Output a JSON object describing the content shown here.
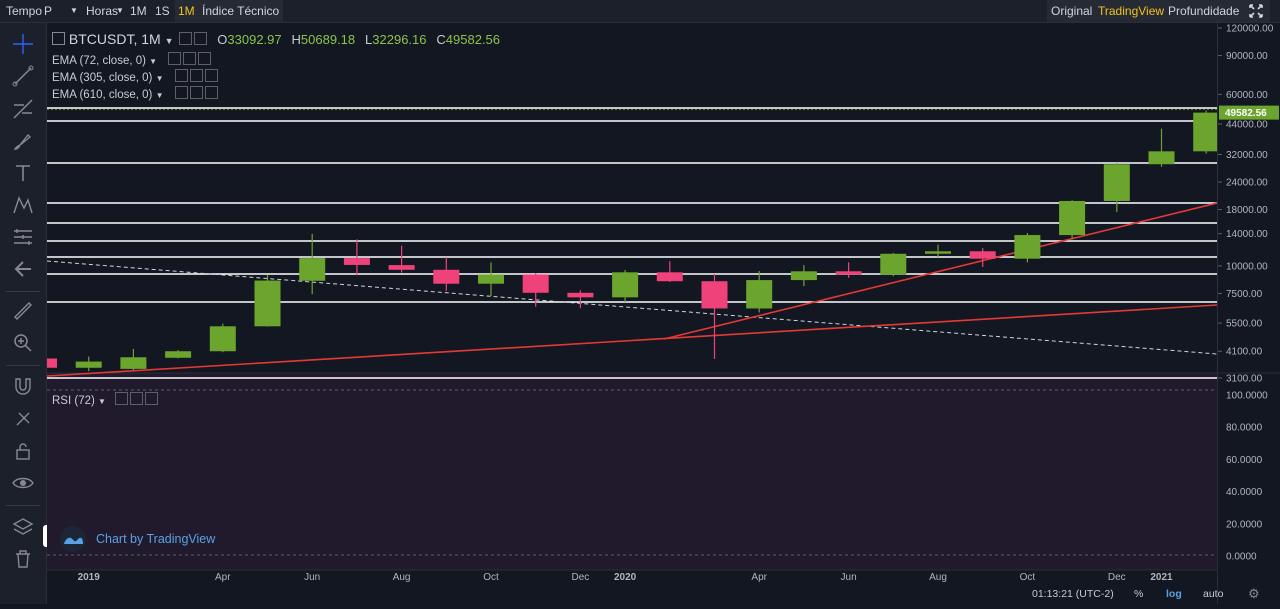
{
  "topbar": {
    "tempo_label": "Tempo",
    "period_select": "P",
    "hours_select": "Horas",
    "intervals": [
      "1M",
      "1S",
      "1M"
    ],
    "indicators_button": "Índice Técnico",
    "views": [
      "Original",
      "TradingView",
      "Profundidade"
    ],
    "active_view": "TradingView"
  },
  "legend": {
    "symbol": "BTCUSDT, 1M",
    "open_label": "O",
    "open": "33092.97",
    "high_label": "H",
    "high": "50689.18",
    "low_label": "L",
    "low": "32296.16",
    "close_label": "C",
    "close": "49582.56",
    "ema1": "EMA (72, close, 0)",
    "ema2": "EMA (305, close, 0)",
    "ema3": "EMA (610, close, 0)",
    "rsi": "RSI (72)"
  },
  "price_axis": [
    "120000.00",
    "90000.00",
    "60000.00",
    "44000.00",
    "32000.00",
    "24000.00",
    "18000.00",
    "14000.00",
    "10000.00",
    "7500.00",
    "5500.00",
    "4100.00",
    "3100.00"
  ],
  "last_price": "49582.56",
  "rsi_axis": [
    "100.0000",
    "80.0000",
    "60.0000",
    "40.0000",
    "20.0000",
    "0.0000"
  ],
  "time_axis": [
    "2019",
    "Apr",
    "Jun",
    "Aug",
    "Oct",
    "Dec",
    "2020",
    "Apr",
    "Jun",
    "Aug",
    "Oct",
    "Dec",
    "2021"
  ],
  "bottom_bar": {
    "clock": "01:13:21 (UTC-2)",
    "percent": "%",
    "log": "log",
    "auto": "auto"
  },
  "credit": "Chart by TradingView",
  "colors": {
    "up": "#6ba52e",
    "down": "#f0427a",
    "trend": "#e53935",
    "level": "#ffffff",
    "accent": "#f0c419"
  },
  "chart_data": {
    "type": "candlestick",
    "symbol": "BTCUSDT",
    "interval": "1M",
    "scale": "log",
    "candles": [
      {
        "t": "2018-12",
        "o": 3800,
        "h": 4200,
        "l": 3150,
        "c": 3450
      },
      {
        "t": "2019-01",
        "o": 3450,
        "h": 3880,
        "l": 3330,
        "c": 3680
      },
      {
        "t": "2019-02",
        "o": 3410,
        "h": 4200,
        "l": 3370,
        "c": 3850
      },
      {
        "t": "2019-03",
        "o": 3830,
        "h": 4150,
        "l": 3800,
        "c": 4100
      },
      {
        "t": "2019-04",
        "o": 4100,
        "h": 5470,
        "l": 4060,
        "c": 5320
      },
      {
        "t": "2019-05",
        "o": 5320,
        "h": 9100,
        "l": 5300,
        "c": 8580
      },
      {
        "t": "2019-06",
        "o": 8560,
        "h": 13970,
        "l": 7440,
        "c": 10850
      },
      {
        "t": "2019-07",
        "o": 10850,
        "h": 13200,
        "l": 9070,
        "c": 10100
      },
      {
        "t": "2019-08",
        "o": 10080,
        "h": 12330,
        "l": 9320,
        "c": 9600
      },
      {
        "t": "2019-09",
        "o": 9600,
        "h": 10950,
        "l": 7710,
        "c": 8300
      },
      {
        "t": "2019-10",
        "o": 8300,
        "h": 10370,
        "l": 7300,
        "c": 9150
      },
      {
        "t": "2019-11",
        "o": 9150,
        "h": 9270,
        "l": 6520,
        "c": 7550
      },
      {
        "t": "2019-12",
        "o": 7550,
        "h": 7750,
        "l": 6430,
        "c": 7200
      },
      {
        "t": "2020-01",
        "o": 7200,
        "h": 9580,
        "l": 6850,
        "c": 9350
      },
      {
        "t": "2020-02",
        "o": 9350,
        "h": 10500,
        "l": 8450,
        "c": 8520
      },
      {
        "t": "2020-03",
        "o": 8520,
        "h": 9190,
        "l": 3780,
        "c": 6410
      },
      {
        "t": "2020-04",
        "o": 6410,
        "h": 9480,
        "l": 6150,
        "c": 8620
      },
      {
        "t": "2020-05",
        "o": 8620,
        "h": 10080,
        "l": 8100,
        "c": 9450
      },
      {
        "t": "2020-06",
        "o": 9450,
        "h": 10380,
        "l": 8830,
        "c": 9140
      },
      {
        "t": "2020-07",
        "o": 9140,
        "h": 11450,
        "l": 8980,
        "c": 11350
      },
      {
        "t": "2020-08",
        "o": 11350,
        "h": 12470,
        "l": 10950,
        "c": 11650
      },
      {
        "t": "2020-09",
        "o": 11650,
        "h": 12050,
        "l": 9880,
        "c": 10780
      },
      {
        "t": "2020-10",
        "o": 10780,
        "h": 14100,
        "l": 10370,
        "c": 13800
      },
      {
        "t": "2020-11",
        "o": 13800,
        "h": 19860,
        "l": 13200,
        "c": 19700
      },
      {
        "t": "2020-12",
        "o": 19700,
        "h": 29300,
        "l": 17570,
        "c": 28920
      },
      {
        "t": "2021-01",
        "o": 28920,
        "h": 41950,
        "l": 28130,
        "c": 33090
      },
      {
        "t": "2021-02",
        "o": 33092.97,
        "h": 50689.18,
        "l": 32296.16,
        "c": 49582.56
      }
    ]
  }
}
